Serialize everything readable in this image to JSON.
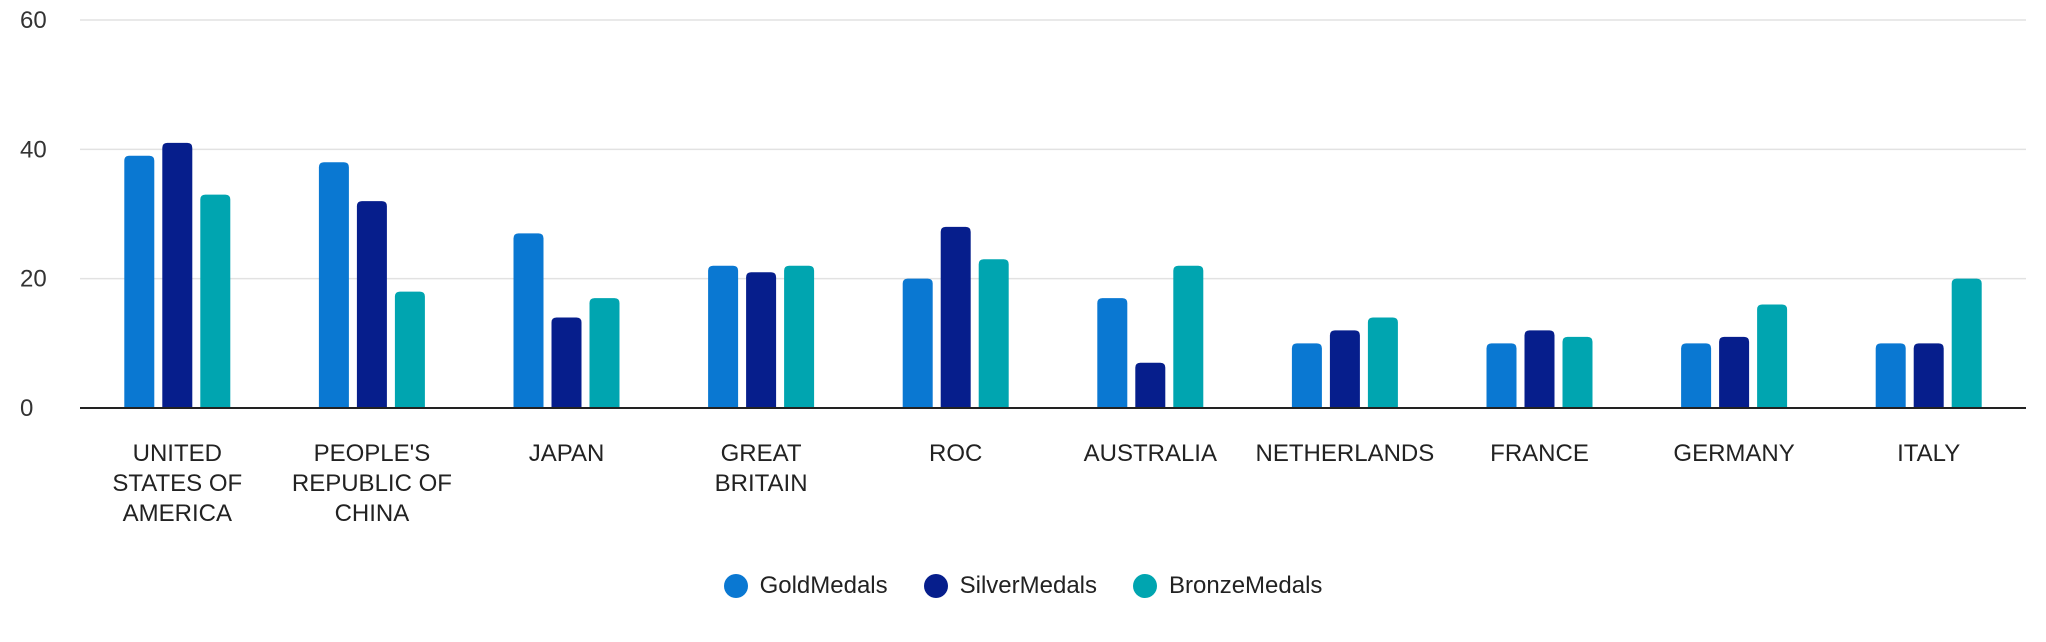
{
  "chart_data": {
    "type": "bar",
    "categories": [
      "UNITED STATES OF AMERICA",
      "PEOPLE'S REPUBLIC OF CHINA",
      "JAPAN",
      "GREAT BRITAIN",
      "ROC",
      "AUSTRALIA",
      "NETHERLANDS",
      "FRANCE",
      "GERMANY",
      "ITALY"
    ],
    "category_lines": [
      [
        "UNITED",
        "STATES OF",
        "AMERICA"
      ],
      [
        "PEOPLE'S",
        "REPUBLIC OF",
        "CHINA"
      ],
      [
        "JAPAN"
      ],
      [
        "GREAT",
        "BRITAIN"
      ],
      [
        "ROC"
      ],
      [
        "AUSTRALIA"
      ],
      [
        "NETHERLANDS"
      ],
      [
        "FRANCE"
      ],
      [
        "GERMANY"
      ],
      [
        "ITALY"
      ]
    ],
    "series": [
      {
        "name": "GoldMedals",
        "color": "#0a78d2",
        "values": [
          39,
          38,
          27,
          22,
          20,
          17,
          10,
          10,
          10,
          10
        ]
      },
      {
        "name": "SilverMedals",
        "color": "#061e8c",
        "values": [
          41,
          32,
          14,
          21,
          28,
          7,
          12,
          12,
          11,
          10
        ]
      },
      {
        "name": "BronzeMedals",
        "color": "#00a5b0",
        "values": [
          33,
          18,
          17,
          22,
          23,
          22,
          14,
          11,
          16,
          20
        ]
      }
    ],
    "y_ticks": [
      0,
      20,
      40,
      60
    ],
    "ylim": [
      0,
      60
    ],
    "xlabel": "",
    "ylabel": "",
    "title": "",
    "grid": true,
    "legend_position": "bottom-center"
  }
}
